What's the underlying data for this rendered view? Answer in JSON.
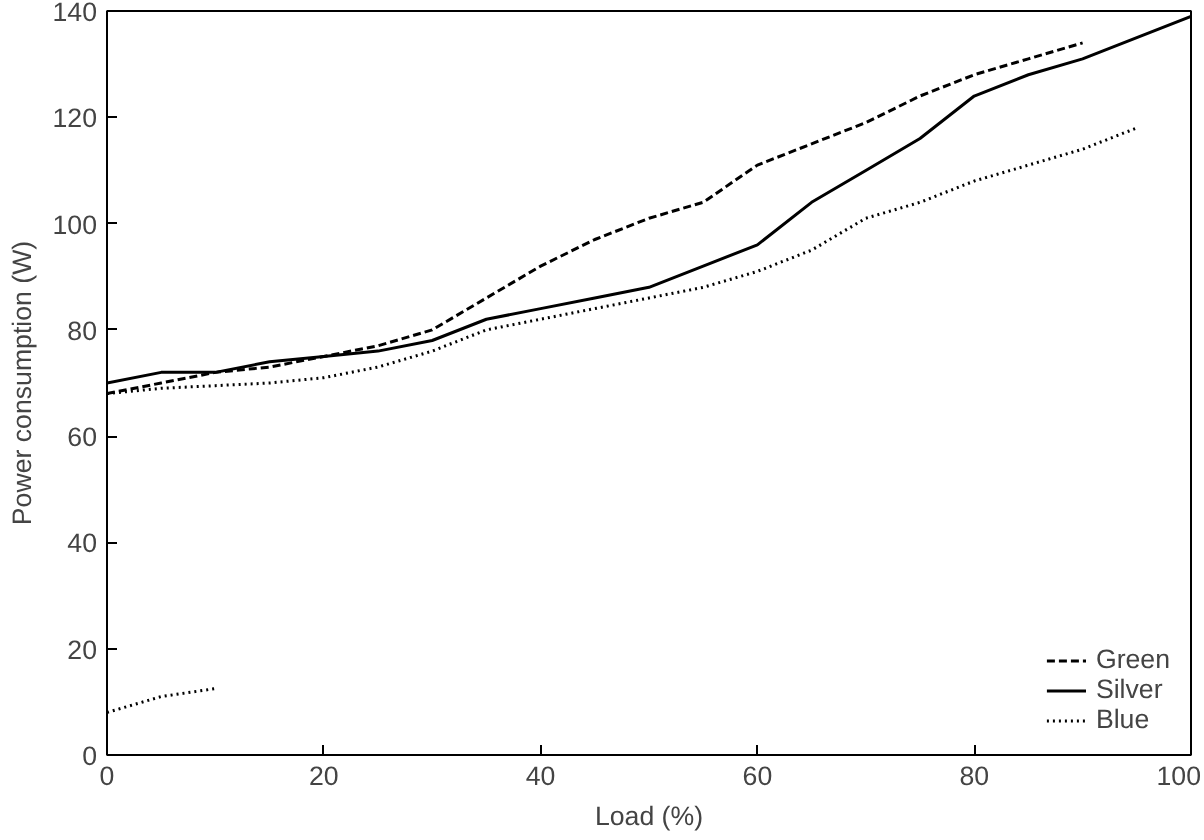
{
  "chart_data": {
    "type": "line",
    "xlabel": "Load (%)",
    "ylabel": "Power consumption (W)",
    "x": [
      0,
      5,
      10,
      15,
      20,
      25,
      30,
      35,
      40,
      45,
      50,
      55,
      60,
      65,
      70,
      75,
      80,
      85,
      90,
      95,
      100
    ],
    "xlim": [
      0,
      100
    ],
    "ylim": [
      0,
      140
    ],
    "xticks": [
      0,
      20,
      40,
      60,
      80,
      100
    ],
    "yticks": [
      0,
      20,
      40,
      60,
      80,
      100,
      120,
      140
    ],
    "grid": false,
    "legend": "bottom right",
    "marker": "none",
    "series": [
      {
        "name": "Green",
        "color": "#000000",
        "line_style": "dashed",
        "values": [
          68,
          70,
          72,
          73,
          75,
          77,
          80,
          86,
          92,
          97,
          101,
          104,
          111,
          115,
          119,
          124,
          128,
          131,
          134,
          null,
          null
        ]
      },
      {
        "name": "Silver",
        "color": "#000000",
        "line_style": "solid",
        "values": [
          70,
          72,
          72,
          74,
          75,
          76,
          78,
          82,
          84,
          86,
          88,
          92,
          96,
          104,
          110,
          116,
          124,
          128,
          131,
          135,
          139
        ]
      },
      {
        "name": "Blue",
        "color": "#000000",
        "line_style": "dotted",
        "values": [
          68,
          69,
          69.5,
          70,
          71,
          73,
          76,
          80,
          82,
          84,
          86,
          88,
          91,
          95,
          101,
          104,
          108,
          111,
          114,
          118,
          null
        ]
      },
      {
        "color": "#000000",
        "line_style": "dotted",
        "x": [
          0,
          5,
          10
        ],
        "values": [
          8,
          11,
          12.5
        ]
      }
    ]
  }
}
